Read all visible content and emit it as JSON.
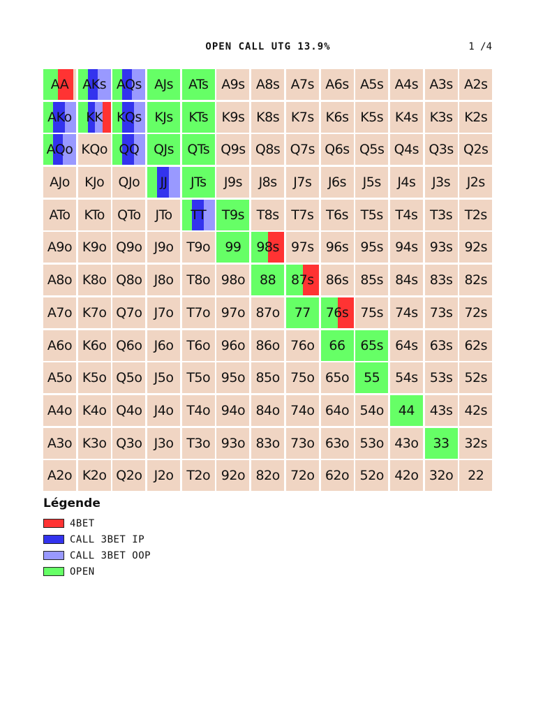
{
  "header": {
    "title": "OPEN CALL UTG 13.9%",
    "page": "1 /4"
  },
  "colors": {
    "fold": "#f0d5c3",
    "open": "#66ff66",
    "call_3bet_ip": "#3333ee",
    "call_3bet_oop": "#9999ff",
    "4bet": "#ff3333"
  },
  "grid": {
    "rows": [
      [
        "AA",
        "AKs",
        "AQs",
        "AJs",
        "ATs",
        "A9s",
        "A8s",
        "A7s",
        "A6s",
        "A5s",
        "A4s",
        "A3s",
        "A2s"
      ],
      [
        "AKo",
        "KK",
        "KQs",
        "KJs",
        "KTs",
        "K9s",
        "K8s",
        "K7s",
        "K6s",
        "K5s",
        "K4s",
        "K3s",
        "K2s"
      ],
      [
        "AQo",
        "KQo",
        "QQ",
        "QJs",
        "QTs",
        "Q9s",
        "Q8s",
        "Q7s",
        "Q6s",
        "Q5s",
        "Q4s",
        "Q3s",
        "Q2s"
      ],
      [
        "AJo",
        "KJo",
        "QJo",
        "JJ",
        "JTs",
        "J9s",
        "J8s",
        "J7s",
        "J6s",
        "J5s",
        "J4s",
        "J3s",
        "J2s"
      ],
      [
        "ATo",
        "KTo",
        "QTo",
        "JTo",
        "TT",
        "T9s",
        "T8s",
        "T7s",
        "T6s",
        "T5s",
        "T4s",
        "T3s",
        "T2s"
      ],
      [
        "A9o",
        "K9o",
        "Q9o",
        "J9o",
        "T9o",
        "99",
        "98s",
        "97s",
        "96s",
        "95s",
        "94s",
        "93s",
        "92s"
      ],
      [
        "A8o",
        "K8o",
        "Q8o",
        "J8o",
        "T8o",
        "98o",
        "88",
        "87s",
        "86s",
        "85s",
        "84s",
        "83s",
        "82s"
      ],
      [
        "A7o",
        "K7o",
        "Q7o",
        "J7o",
        "T7o",
        "97o",
        "87o",
        "77",
        "76s",
        "75s",
        "74s",
        "73s",
        "72s"
      ],
      [
        "A6o",
        "K6o",
        "Q6o",
        "J6o",
        "T6o",
        "96o",
        "86o",
        "76o",
        "66",
        "65s",
        "64s",
        "63s",
        "62s"
      ],
      [
        "A5o",
        "K5o",
        "Q5o",
        "J5o",
        "T5o",
        "95o",
        "85o",
        "75o",
        "65o",
        "55",
        "54s",
        "53s",
        "52s"
      ],
      [
        "A4o",
        "K4o",
        "Q4o",
        "J4o",
        "T4o",
        "94o",
        "84o",
        "74o",
        "64o",
        "54o",
        "44",
        "43s",
        "42s"
      ],
      [
        "A3o",
        "K3o",
        "Q3o",
        "J3o",
        "T3o",
        "93o",
        "83o",
        "73o",
        "63o",
        "53o",
        "43o",
        "33",
        "32s"
      ],
      [
        "A2o",
        "K2o",
        "Q2o",
        "J2o",
        "T2o",
        "92o",
        "82o",
        "72o",
        "62o",
        "52o",
        "42o",
        "32o",
        "22"
      ]
    ],
    "actions": {
      "AA": [
        {
          "a": "open",
          "f": 0.45
        },
        {
          "a": "4bet",
          "f": 0.45
        }
      ],
      "AKs": [
        {
          "a": "open",
          "f": 0.3
        },
        {
          "a": "call_3bet_ip",
          "f": 0.3
        },
        {
          "a": "call_3bet_oop",
          "f": 0.4
        }
      ],
      "AQs": [
        {
          "a": "open",
          "f": 0.3
        },
        {
          "a": "call_3bet_ip",
          "f": 0.3
        },
        {
          "a": "call_3bet_oop",
          "f": 0.4
        }
      ],
      "AJs": [
        {
          "a": "open",
          "f": 1
        }
      ],
      "ATs": [
        {
          "a": "open",
          "f": 1
        }
      ],
      "AKo": [
        {
          "a": "open",
          "f": 0.3
        },
        {
          "a": "call_3bet_ip",
          "f": 0.35
        },
        {
          "a": "call_3bet_oop",
          "f": 0.35
        }
      ],
      "KK": [
        {
          "a": "open",
          "f": 0.3
        },
        {
          "a": "call_3bet_ip",
          "f": 0.2
        },
        {
          "a": "call_3bet_oop",
          "f": 0.25
        },
        {
          "a": "4bet",
          "f": 0.25
        }
      ],
      "KQs": [
        {
          "a": "open",
          "f": 0.3
        },
        {
          "a": "call_3bet_ip",
          "f": 0.35
        },
        {
          "a": "call_3bet_oop",
          "f": 0.35
        }
      ],
      "KJs": [
        {
          "a": "open",
          "f": 1
        }
      ],
      "KTs": [
        {
          "a": "open",
          "f": 1
        }
      ],
      "AQo": [
        {
          "a": "open",
          "f": 0.3
        },
        {
          "a": "call_3bet_ip",
          "f": 0.3
        },
        {
          "a": "call_3bet_oop",
          "f": 0.4
        }
      ],
      "QQ": [
        {
          "a": "open",
          "f": 0.3
        },
        {
          "a": "call_3bet_ip",
          "f": 0.35
        },
        {
          "a": "call_3bet_oop",
          "f": 0.35
        }
      ],
      "QJs": [
        {
          "a": "open",
          "f": 1
        }
      ],
      "QTs": [
        {
          "a": "open",
          "f": 1
        }
      ],
      "JJ": [
        {
          "a": "open",
          "f": 0.3
        },
        {
          "a": "call_3bet_ip",
          "f": 0.35
        },
        {
          "a": "call_3bet_oop",
          "f": 0.35
        }
      ],
      "JTs": [
        {
          "a": "open",
          "f": 1
        }
      ],
      "TT": [
        {
          "a": "open",
          "f": 0.3
        },
        {
          "a": "call_3bet_ip",
          "f": 0.35
        },
        {
          "a": "call_3bet_oop",
          "f": 0.35
        }
      ],
      "T9s": [
        {
          "a": "open",
          "f": 1
        }
      ],
      "99": [
        {
          "a": "open",
          "f": 1
        }
      ],
      "98s": [
        {
          "a": "open",
          "f": 0.5
        },
        {
          "a": "4bet",
          "f": 0.5
        }
      ],
      "88": [
        {
          "a": "open",
          "f": 1
        }
      ],
      "87s": [
        {
          "a": "open",
          "f": 0.5
        },
        {
          "a": "4bet",
          "f": 0.5
        }
      ],
      "77": [
        {
          "a": "open",
          "f": 1
        }
      ],
      "76s": [
        {
          "a": "open",
          "f": 0.5
        },
        {
          "a": "4bet",
          "f": 0.5
        }
      ],
      "66": [
        {
          "a": "open",
          "f": 1
        }
      ],
      "65s": [
        {
          "a": "open",
          "f": 1
        }
      ],
      "55": [
        {
          "a": "open",
          "f": 1
        }
      ],
      "44": [
        {
          "a": "open",
          "f": 1
        }
      ],
      "33": [
        {
          "a": "open",
          "f": 1
        }
      ]
    }
  },
  "legend": {
    "title": "Légende",
    "items": [
      {
        "key": "4bet",
        "label": "4BET"
      },
      {
        "key": "call_3bet_ip",
        "label": "CALL 3BET IP"
      },
      {
        "key": "call_3bet_oop",
        "label": "CALL 3BET OOP"
      },
      {
        "key": "open",
        "label": "OPEN"
      }
    ]
  }
}
